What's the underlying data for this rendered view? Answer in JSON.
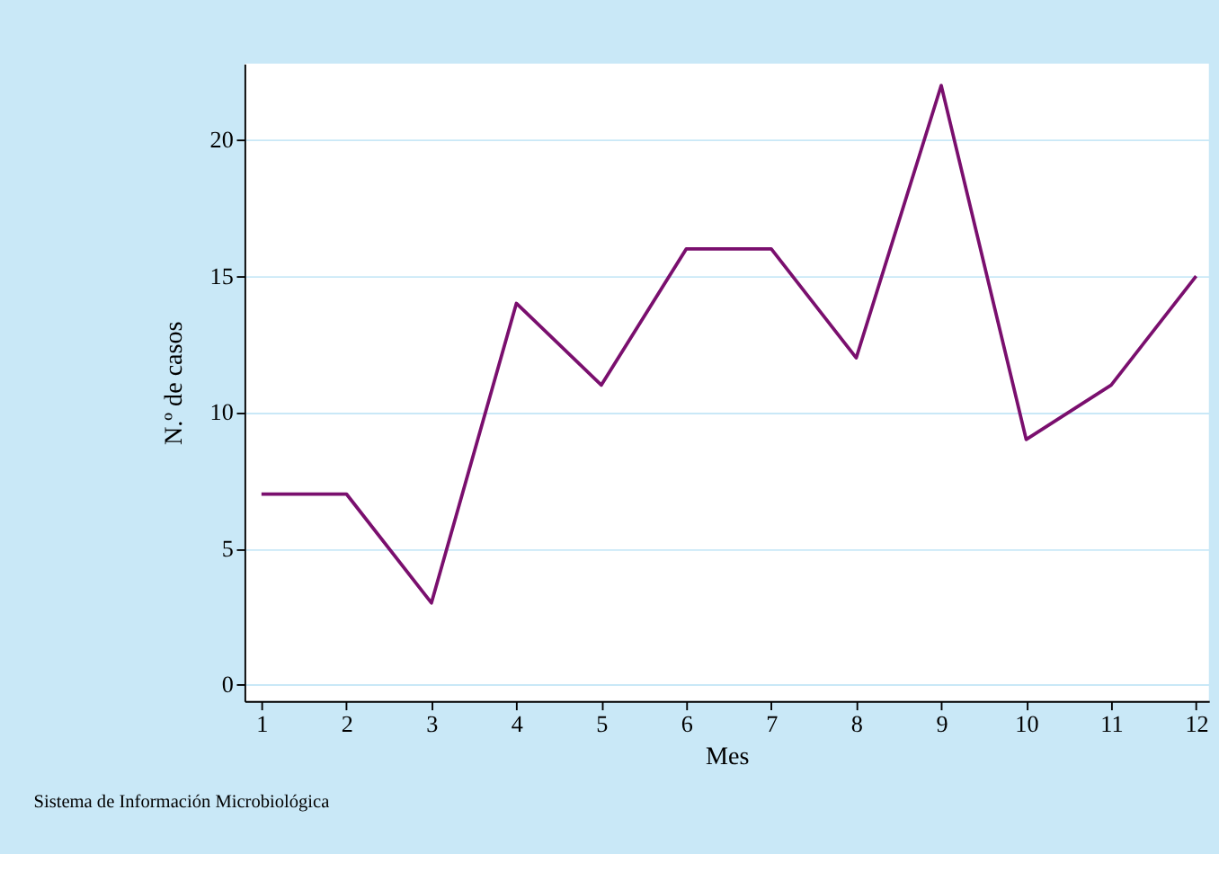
{
  "chart_data": {
    "type": "line",
    "xlabel": "Mes",
    "ylabel": "N.º de casos",
    "x": [
      1,
      2,
      3,
      4,
      5,
      6,
      7,
      8,
      9,
      10,
      11,
      12
    ],
    "series": [
      {
        "color": "#7a0f6e",
        "values": [
          7,
          7,
          3,
          14,
          11,
          16,
          16,
          12,
          22,
          9,
          11,
          15
        ]
      }
    ],
    "xlim": [
      0.8,
      12.15
    ],
    "xticks": [
      1,
      2,
      3,
      4,
      5,
      6,
      7,
      8,
      9,
      10,
      11,
      12
    ],
    "ylim": [
      -0.6,
      22.8
    ],
    "yticks": [
      0,
      5,
      10,
      15,
      20
    ],
    "grid": "y",
    "marker": "none",
    "line_style": "solid",
    "annotations": [
      "Sistema de Información Microbiológica"
    ]
  }
}
